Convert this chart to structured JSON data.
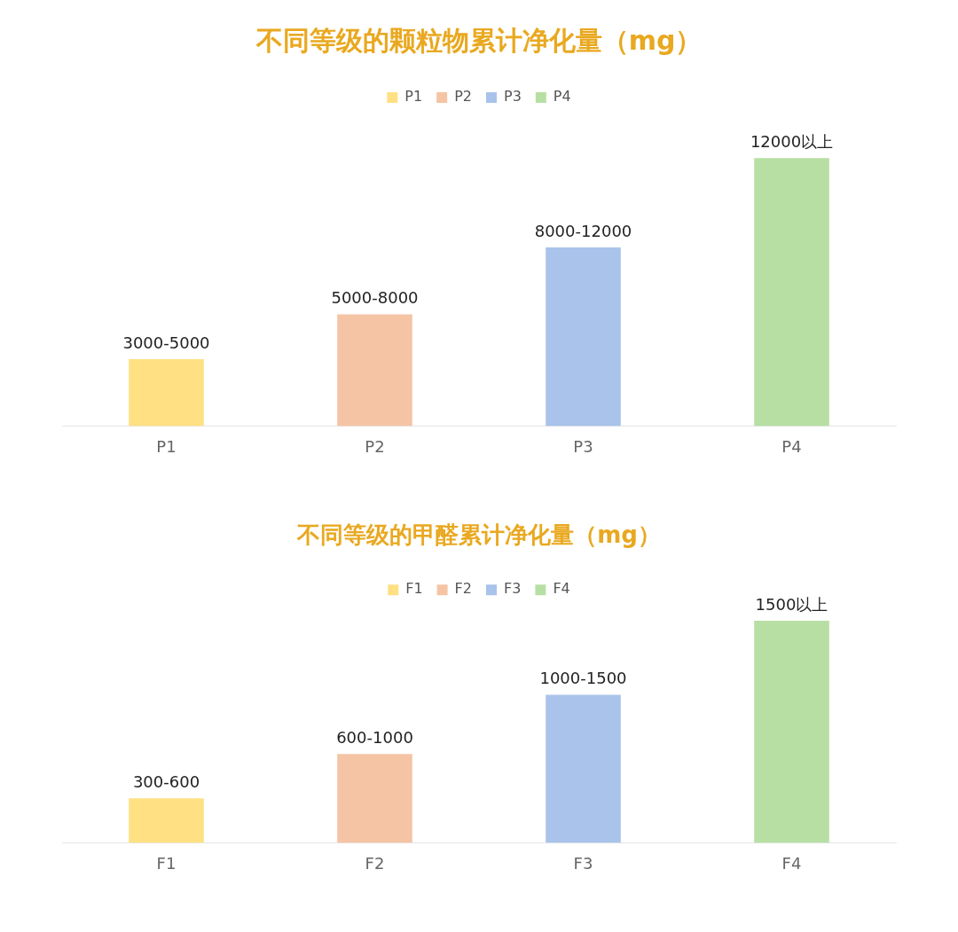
{
  "chart_data": [
    {
      "type": "bar",
      "title": "不同等级的颗粒物累计净化量（mg）",
      "categories": [
        "P1",
        "P2",
        "P3",
        "P4"
      ],
      "tick_labels": "x",
      "legend": "top",
      "grid": false,
      "series": [
        {
          "name": "P1",
          "color": "#ffe083",
          "values": [
            3000,
            null,
            null,
            null
          ],
          "value_labels": [
            "3000-5000",
            null,
            null,
            null
          ]
        },
        {
          "name": "P2",
          "color": "#f5c4a4",
          "values": [
            null,
            5000,
            null,
            null
          ],
          "value_labels": [
            null,
            "5000-8000",
            null,
            null
          ]
        },
        {
          "name": "P3",
          "color": "#a9c3ea",
          "values": [
            null,
            null,
            8000,
            null
          ],
          "value_labels": [
            null,
            null,
            "8000-12000",
            null
          ]
        },
        {
          "name": "P4",
          "color": "#b7dfa3",
          "values": [
            null,
            null,
            null,
            12000
          ],
          "value_labels": [
            null,
            null,
            null,
            "12000以上"
          ]
        }
      ]
    },
    {
      "type": "bar",
      "title": "不同等级的甲醛累计净化量（mg）",
      "categories": [
        "F1",
        "F2",
        "F3",
        "F4"
      ],
      "tick_labels": "x",
      "legend": "top",
      "grid": false,
      "series": [
        {
          "name": "F1",
          "color": "#ffe083",
          "values": [
            300,
            null,
            null,
            null
          ],
          "value_labels": [
            "300-600",
            null,
            null,
            null
          ]
        },
        {
          "name": "F2",
          "color": "#f5c4a4",
          "values": [
            null,
            600,
            null,
            null
          ],
          "value_labels": [
            null,
            "600-1000",
            null,
            null
          ]
        },
        {
          "name": "F3",
          "color": "#a9c3ea",
          "values": [
            null,
            null,
            1000,
            null
          ],
          "value_labels": [
            null,
            null,
            "1000-1500",
            null
          ]
        },
        {
          "name": "F4",
          "color": "#b7dfa3",
          "values": [
            null,
            null,
            null,
            1500
          ],
          "value_labels": [
            null,
            null,
            null,
            "1500以上"
          ]
        }
      ]
    }
  ]
}
